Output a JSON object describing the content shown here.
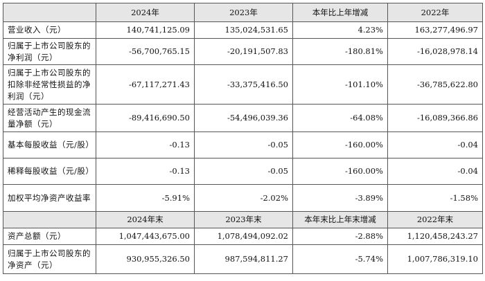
{
  "header1": [
    "",
    "2024年",
    "2023年",
    "本年比上年增减",
    "2022年"
  ],
  "rows1": [
    {
      "label": "营业收入（元）",
      "values": [
        "140,741,125.09",
        "135,024,531.65",
        "4.23%",
        "163,277,496.97"
      ]
    },
    {
      "label": "归属于上市公司股东的净利润（元）",
      "values": [
        "-56,700,765.15",
        "-20,191,507.83",
        "-180.81%",
        "-16,028,978.14"
      ]
    },
    {
      "label": "归属于上市公司股东的扣除非经常性损益的净利润（元）",
      "values": [
        "-67,117,271.43",
        "-33,375,416.50",
        "-101.10%",
        "-36,785,622.80"
      ]
    },
    {
      "label": "经营活动产生的现金流量净额（元）",
      "values": [
        "-89,416,690.50",
        "-54,496,039.36",
        "-64.08%",
        "-16,089,366.86"
      ]
    },
    {
      "label": "基本每股收益（元/股）",
      "values": [
        "-0.13",
        "-0.05",
        "-160.00%",
        "-0.04"
      ]
    },
    {
      "label": "稀释每股收益（元/股）",
      "values": [
        "-0.13",
        "-0.05",
        "-160.00%",
        "-0.04"
      ]
    },
    {
      "label": "加权平均净资产收益率",
      "values": [
        "-5.91%",
        "-2.02%",
        "-3.89%",
        "-1.58%"
      ]
    }
  ],
  "header2": [
    "",
    "2024年末",
    "2023年末",
    "本年末比上年末增减",
    "2022年末"
  ],
  "rows2": [
    {
      "label": "资产总额（元）",
      "values": [
        "1,047,443,675.00",
        "1,078,494,092.02",
        "-2.88%",
        "1,120,458,243.27"
      ]
    },
    {
      "label": "归属于上市公司股东的净资产（元）",
      "values": [
        "930,955,326.50",
        "987,594,811.27",
        "-5.74%",
        "1,007,786,319.10"
      ]
    }
  ]
}
